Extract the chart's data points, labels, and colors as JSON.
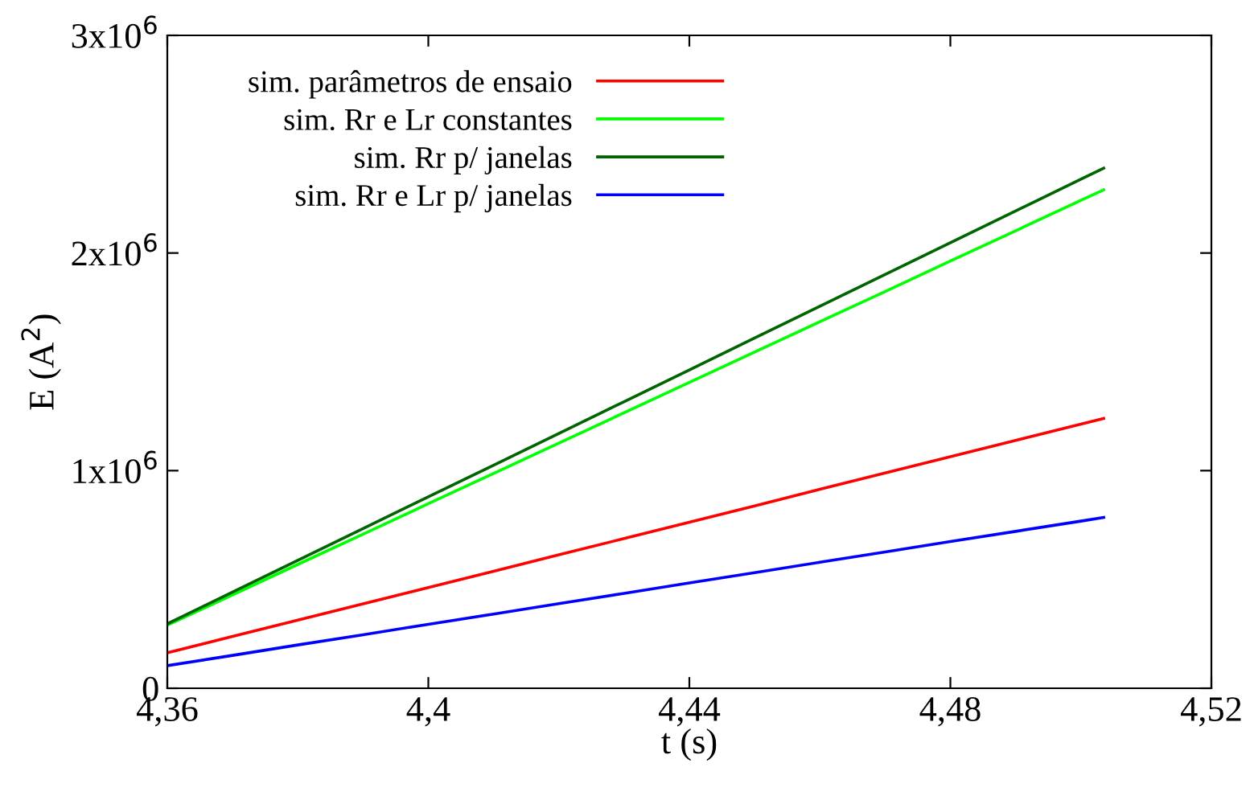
{
  "chart_data": {
    "type": "line",
    "xlabel": "t (s)",
    "ylabel": "E (A$^{2}$)",
    "x": [
      4.36,
      4.37,
      4.38,
      4.39,
      4.4,
      4.41,
      4.42,
      4.43,
      4.44,
      4.45,
      4.46,
      4.47,
      4.48,
      4.49,
      4.5,
      4.5035
    ],
    "series": [
      {
        "name": "sim. parâmetros de ensaio",
        "color": "#ff0000",
        "values": [
          163000,
          238000,
          313000,
          388000,
          463000,
          538000,
          613000,
          688000,
          763000,
          838000,
          914000,
          989000,
          1064000,
          1139000,
          1214000,
          1240000
        ]
      },
      {
        "name": "sim. Rr e Lr constantes",
        "color": "#00ff00",
        "values": [
          290000,
          429000,
          569000,
          708000,
          848000,
          987000,
          1126000,
          1266000,
          1405000,
          1545000,
          1684000,
          1823000,
          1963000,
          2102000,
          2242000,
          2290000
        ]
      },
      {
        "name": "sim. Rr p/ janelas",
        "color": "#006400",
        "values": [
          296000,
          442000,
          588000,
          734000,
          880000,
          1025000,
          1171000,
          1317000,
          1463000,
          1609000,
          1755000,
          1901000,
          2047000,
          2193000,
          2339000,
          2390000
        ]
      },
      {
        "name": "sim. Rr e Lr p/ janelas",
        "color": "#0000ff",
        "values": [
          104000,
          151000,
          199000,
          246000,
          294000,
          341000,
          389000,
          436000,
          484000,
          531000,
          579000,
          626000,
          674000,
          721000,
          768000,
          785000
        ]
      }
    ],
    "xlim": [
      4.36,
      4.52
    ],
    "xticks": [
      {
        "value": 4.36,
        "label": "4,36"
      },
      {
        "value": 4.4,
        "label": "4,4"
      },
      {
        "value": 4.44,
        "label": "4,44"
      },
      {
        "value": 4.48,
        "label": "4,48"
      },
      {
        "value": 4.52,
        "label": "4,52"
      }
    ],
    "ylim": [
      0,
      3000000
    ],
    "yticks": [
      0,
      {
        "value": 1000000,
        "label": "1x10$^{6}$"
      },
      {
        "value": 2000000,
        "label": "2x10$^{6}$"
      },
      {
        "value": 3000000,
        "label": "3x10$^{6}$"
      }
    ],
    "legend": "top left",
    "grid": false,
    "marker": "none",
    "line_style": "solid"
  }
}
